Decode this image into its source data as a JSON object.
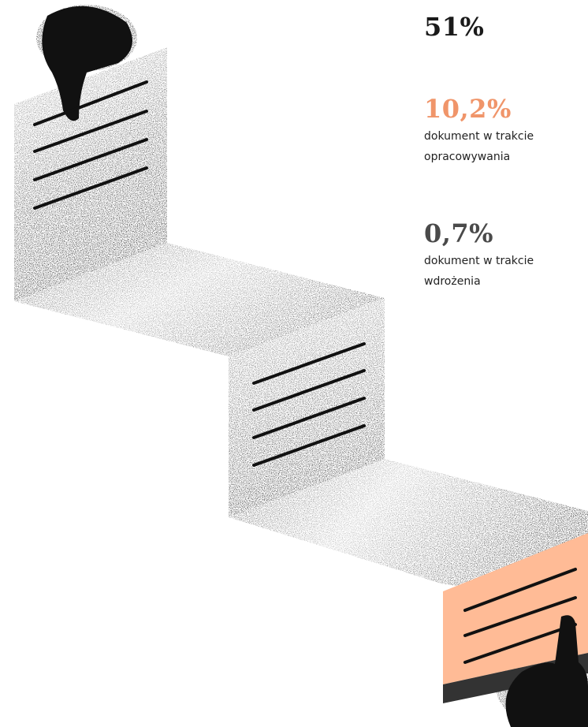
{
  "stats": [
    {
      "value": "51%",
      "label_lines": [],
      "color": "#1a1a1a"
    },
    {
      "value": "10,2%",
      "label_lines": [
        "dokument w trakcie",
        "opracowywania"
      ],
      "color": "#f0956a"
    },
    {
      "value": "0,7%",
      "label_lines": [
        "dokument w trakcie",
        "wdrożenia"
      ],
      "color": "#4a4a4a"
    }
  ],
  "colors": {
    "ink": "#111111",
    "peach": "#ffbb96",
    "accent_orange": "#f0956a",
    "dark_stripe": "#333333"
  },
  "icons": [
    "document-stack-illustration",
    "pin-icon",
    "pin-icon"
  ]
}
